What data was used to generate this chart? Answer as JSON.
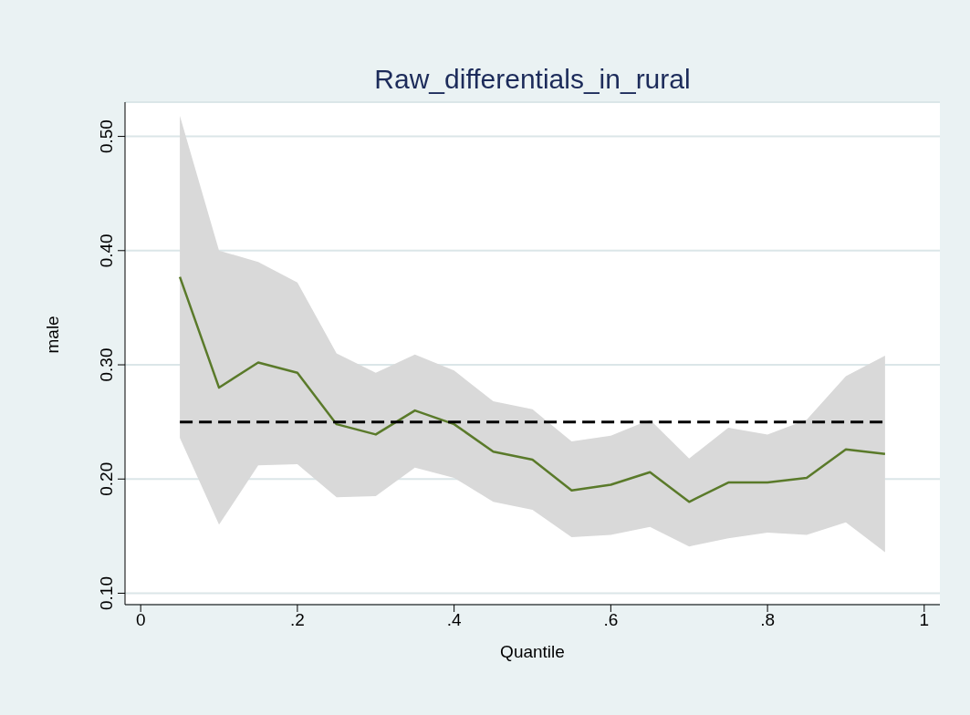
{
  "chart_data": {
    "type": "line",
    "title": "Raw_differentials_in_rural",
    "xlabel": "Quantile",
    "ylabel": "male",
    "x": [
      0.05,
      0.1,
      0.15,
      0.2,
      0.25,
      0.3,
      0.35,
      0.4,
      0.45,
      0.5,
      0.55,
      0.6,
      0.65,
      0.7,
      0.75,
      0.8,
      0.85,
      0.9,
      0.95
    ],
    "series": [
      {
        "color": "#5a7a2a",
        "values": [
          0.377,
          0.28,
          0.302,
          0.293,
          0.248,
          0.239,
          0.26,
          0.248,
          0.224,
          0.217,
          0.19,
          0.195,
          0.206,
          0.18,
          0.197,
          0.197,
          0.201,
          0.226,
          0.222
        ],
        "lower": [
          0.236,
          0.16,
          0.212,
          0.213,
          0.184,
          0.185,
          0.21,
          0.201,
          0.18,
          0.173,
          0.149,
          0.151,
          0.158,
          0.141,
          0.148,
          0.153,
          0.151,
          0.162,
          0.136
        ],
        "upper": [
          0.518,
          0.4,
          0.39,
          0.372,
          0.31,
          0.293,
          0.309,
          0.295,
          0.268,
          0.261,
          0.233,
          0.238,
          0.252,
          0.218,
          0.245,
          0.239,
          0.252,
          0.29,
          0.308
        ]
      },
      {
        "color": "#000000",
        "line_style": "dashed",
        "values": [
          0.25,
          0.25,
          0.25,
          0.25,
          0.25,
          0.25,
          0.25,
          0.25,
          0.25,
          0.25,
          0.25,
          0.25,
          0.25,
          0.25,
          0.25,
          0.25,
          0.25,
          0.25,
          0.25
        ]
      }
    ],
    "xlim": [
      -0.02,
      1.02
    ],
    "xticks": [
      {
        "value": 0,
        "label": "0"
      },
      {
        "value": 0.2,
        "label": ".2"
      },
      {
        "value": 0.4,
        "label": ".4"
      },
      {
        "value": 0.6,
        "label": ".6"
      },
      {
        "value": 0.8,
        "label": ".8"
      },
      {
        "value": 1,
        "label": "1"
      }
    ],
    "ylim": [
      0.09,
      0.53
    ],
    "yticks": [
      {
        "value": 0.1,
        "label": "0.10"
      },
      {
        "value": 0.2,
        "label": "0.20"
      },
      {
        "value": 0.3,
        "label": "0.30"
      },
      {
        "value": 0.4,
        "label": "0.40"
      },
      {
        "value": 0.5,
        "label": "0.50"
      }
    ],
    "grid": "y",
    "legend": false,
    "marker": "none"
  }
}
